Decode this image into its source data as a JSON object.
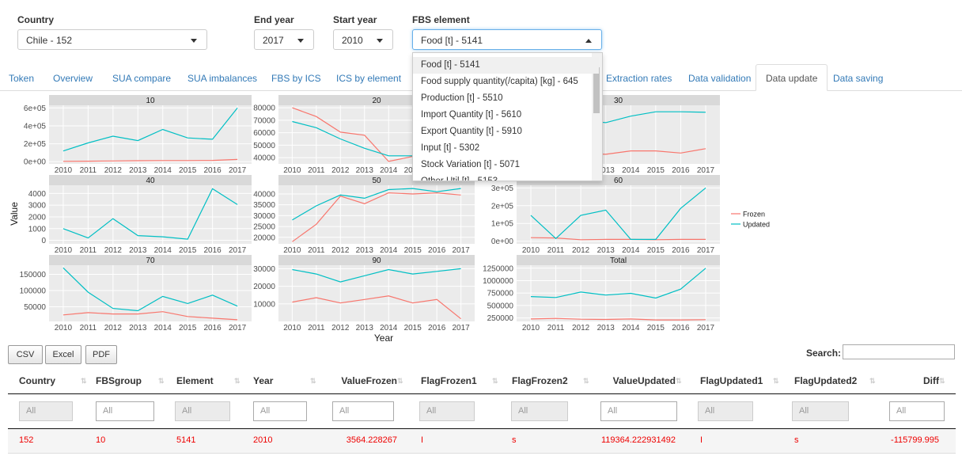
{
  "controls": {
    "country": {
      "label": "Country",
      "value": "Chile - 152"
    },
    "end_year": {
      "label": "End year",
      "value": "2017"
    },
    "start_year": {
      "label": "Start year",
      "value": "2010"
    },
    "fbs_element": {
      "label": "FBS element",
      "value": "Food [t] - 5141",
      "options": [
        "Food [t] - 5141",
        "Food supply quantity(/capita) [kg] - 645",
        "Production [t] - 5510",
        "Import Quantity [t] - 5610",
        "Export Quantity [t] - 5910",
        "Input [t] - 5302",
        "Stock Variation [t] - 5071",
        "Other Util [t] - 5153"
      ]
    }
  },
  "tabs": [
    "Token",
    "Overview",
    "SUA compare",
    "SUA imbalances",
    "FBS by ICS",
    "ICS by element",
    "Extraction rates",
    "Data validation",
    "Data update",
    "Data saving"
  ],
  "active_tab": "Data update",
  "plot": {
    "y_label": "Value",
    "x_label": "Year"
  },
  "chart_data": [
    {
      "type": "line",
      "title": "10",
      "categories": [
        "2010",
        "2011",
        "2012",
        "2013",
        "2014",
        "2015",
        "2016",
        "2017"
      ],
      "ylim": [
        -25000,
        630000
      ],
      "yticks": [
        {
          "value": 0,
          "label": "0e+00"
        },
        {
          "value": 200000,
          "label": "2e+05"
        },
        {
          "value": 400000,
          "label": "4e+05"
        },
        {
          "value": 600000,
          "label": "6e+05"
        }
      ],
      "series": [
        {
          "name": "Frozen",
          "color": "#F8766D",
          "values": [
            3564.228267,
            5000,
            8000,
            10000,
            12000,
            12000,
            14000,
            25000
          ]
        },
        {
          "name": "Updated",
          "color": "#00BFC4",
          "values": [
            119364.222931492,
            210000,
            285000,
            235000,
            360000,
            265000,
            250000,
            600000
          ]
        }
      ]
    },
    {
      "type": "line",
      "title": "20",
      "categories": [
        "2010",
        "2011",
        "2012",
        "2013",
        "2014",
        "2015",
        "2016",
        "2017"
      ],
      "ylim": [
        35000,
        82000
      ],
      "yticks": [
        40000,
        50000,
        60000,
        70000,
        80000
      ],
      "series": [
        {
          "name": "Frozen",
          "color": "#F8766D",
          "values": [
            80000,
            73000,
            60500,
            58000,
            37000,
            41000,
            40000,
            42000
          ]
        },
        {
          "name": "Updated",
          "color": "#00BFC4",
          "values": [
            69000,
            64000,
            55000,
            47500,
            41500,
            41500,
            42000,
            43000
          ]
        }
      ]
    },
    {
      "type": "line",
      "title": "30",
      "categories": [
        "2010",
        "2011",
        "2012",
        "2013",
        "2014",
        "2015",
        "2016",
        "2017"
      ],
      "ylim": [
        40000,
        175000
      ],
      "series": [
        {
          "name": "Frozen",
          "color": "#F8766D",
          "values": [
            73000,
            70000,
            65000,
            62000,
            70000,
            70000,
            65000,
            75000
          ]
        },
        {
          "name": "Updated",
          "color": "#00BFC4",
          "values": [
            128000,
            135000,
            140000,
            135000,
            150000,
            160000,
            160000,
            159000
          ]
        }
      ]
    },
    {
      "type": "line",
      "title": "40",
      "categories": [
        "2010",
        "2011",
        "2012",
        "2013",
        "2014",
        "2015",
        "2016",
        "2017"
      ],
      "ylim": [
        -300,
        4700
      ],
      "yticks": [
        0,
        1000,
        2000,
        3000,
        4000
      ],
      "series": [
        {
          "name": "Updated",
          "color": "#00BFC4",
          "values": [
            1000,
            200,
            1850,
            400,
            300,
            100,
            4400,
            3050
          ]
        }
      ]
    },
    {
      "type": "line",
      "title": "50",
      "categories": [
        "2010",
        "2011",
        "2012",
        "2013",
        "2014",
        "2015",
        "2016",
        "2017"
      ],
      "ylim": [
        17000,
        44000
      ],
      "yticks": [
        20000,
        25000,
        30000,
        35000,
        40000
      ],
      "series": [
        {
          "name": "Frozen",
          "color": "#F8766D",
          "values": [
            18000,
            26000,
            39000,
            35500,
            40500,
            40000,
            40500,
            39500
          ]
        },
        {
          "name": "Updated",
          "color": "#00BFC4",
          "values": [
            28000,
            34500,
            39500,
            38000,
            42000,
            42500,
            41000,
            42500
          ]
        }
      ]
    },
    {
      "type": "line",
      "title": "60",
      "categories": [
        "2010",
        "2011",
        "2012",
        "2013",
        "2014",
        "2015",
        "2016",
        "2017"
      ],
      "ylim": [
        -15000,
        315000
      ],
      "yticks": [
        {
          "value": 0,
          "label": "0e+00"
        },
        {
          "value": 100000,
          "label": "1e+05"
        },
        {
          "value": 200000,
          "label": "2e+05"
        },
        {
          "value": 300000,
          "label": "3e+05"
        }
      ],
      "series": [
        {
          "name": "Frozen",
          "color": "#F8766D",
          "values": [
            20000,
            18000,
            8000,
            10000,
            10000,
            8000,
            10000,
            10000
          ]
        },
        {
          "name": "Updated",
          "color": "#00BFC4",
          "values": [
            145000,
            15000,
            145000,
            175000,
            10000,
            10000,
            185000,
            300000
          ]
        }
      ]
    },
    {
      "type": "line",
      "title": "70",
      "categories": [
        "2010",
        "2011",
        "2012",
        "2013",
        "2014",
        "2015",
        "2016",
        "2017"
      ],
      "ylim": [
        5000,
        178000
      ],
      "yticks": [
        50000,
        100000,
        150000
      ],
      "series": [
        {
          "name": "Frozen",
          "color": "#F8766D",
          "values": [
            25000,
            32000,
            28000,
            28000,
            35000,
            20000,
            15000,
            10000
          ]
        },
        {
          "name": "Updated",
          "color": "#00BFC4",
          "values": [
            170000,
            95000,
            45000,
            38000,
            82000,
            60000,
            86000,
            52000
          ]
        }
      ]
    },
    {
      "type": "line",
      "title": "90",
      "categories": [
        "2010",
        "2011",
        "2012",
        "2013",
        "2014",
        "2015",
        "2016",
        "2017"
      ],
      "ylim": [
        0,
        32000
      ],
      "yticks": [
        10000,
        20000,
        30000
      ],
      "series": [
        {
          "name": "Frozen",
          "color": "#F8766D",
          "values": [
            11000,
            13500,
            10500,
            12500,
            14500,
            10500,
            12500,
            1500
          ]
        },
        {
          "name": "Updated",
          "color": "#00BFC4",
          "values": [
            29500,
            27000,
            22500,
            26000,
            29500,
            27000,
            28500,
            30000
          ]
        }
      ]
    },
    {
      "type": "line",
      "title": "Total",
      "categories": [
        "2010",
        "2011",
        "2012",
        "2013",
        "2014",
        "2015",
        "2016",
        "2017"
      ],
      "ylim": [
        180000,
        1310000
      ],
      "yticks": [
        250000,
        500000,
        750000,
        1000000,
        1250000
      ],
      "series": [
        {
          "name": "Frozen",
          "color": "#F8766D",
          "values": [
            230000,
            240000,
            225000,
            220000,
            230000,
            210000,
            210000,
            215000
          ]
        },
        {
          "name": "Updated",
          "color": "#00BFC4",
          "values": [
            680000,
            660000,
            770000,
            710000,
            745000,
            650000,
            830000,
            1250000
          ]
        }
      ]
    }
  ],
  "buttons": [
    "CSV",
    "Excel",
    "PDF"
  ],
  "search_label": "Search:",
  "table": {
    "headers": [
      "Country",
      "FBSgroup",
      "Element",
      "Year",
      "ValueFrozen",
      "FlagFrozen1",
      "FlagFrozen2",
      "ValueUpdated",
      "FlagUpdated1",
      "FlagUpdated2",
      "Diff"
    ],
    "filters": [
      "All",
      "All",
      "All",
      "All",
      "All",
      "All",
      "All",
      "All",
      "All",
      "All",
      "All"
    ],
    "rows": [
      [
        "152",
        "10",
        "5141",
        "2010",
        "3564.228267",
        "I",
        "s",
        "119364.222931492",
        "I",
        "s",
        "-115799.995"
      ]
    ]
  }
}
